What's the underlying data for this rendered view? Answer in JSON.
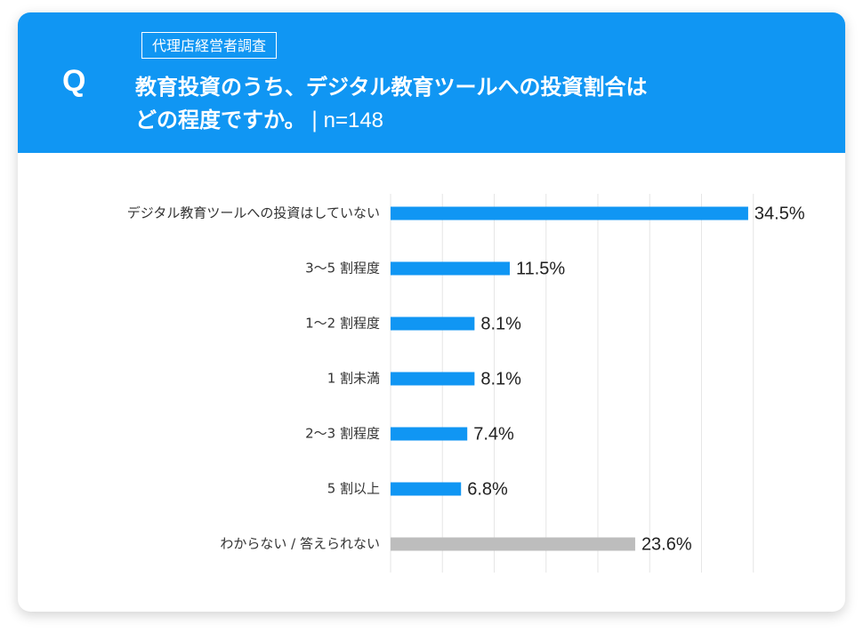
{
  "header": {
    "q_mark": "Q",
    "survey_label": "代理店経営者調査",
    "question_line1": "教育投資のうち、デジタル教育ツールへの投資割合は",
    "question_line2": "どの程度ですか。",
    "separator": "|",
    "sample_size": "n=148"
  },
  "colors": {
    "header_bg": "#1096f3",
    "bar_primary": "#1096f3",
    "bar_other": "#bdbdbd"
  },
  "chart_data": {
    "type": "bar",
    "orientation": "horizontal",
    "unit": "%",
    "grid": true,
    "xlim": [
      0,
      35
    ],
    "categories": [
      "デジタル教育ツールへの投資はしていない",
      "3〜5 割程度",
      "1〜2 割程度",
      "1 割未満",
      "2〜3 割程度",
      "5 割以上",
      "わからない / 答えられない"
    ],
    "values": [
      34.5,
      11.5,
      8.1,
      8.1,
      7.4,
      6.8,
      23.6
    ],
    "value_labels": [
      "34.5%",
      "11.5%",
      "8.1%",
      "8.1%",
      "7.4%",
      "6.8%",
      "23.6%"
    ],
    "bar_colors": [
      "#1096f3",
      "#1096f3",
      "#1096f3",
      "#1096f3",
      "#1096f3",
      "#1096f3",
      "#bdbdbd"
    ]
  }
}
